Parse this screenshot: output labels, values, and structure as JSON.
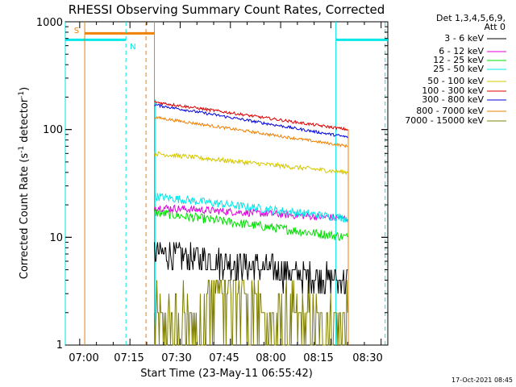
{
  "chart_data": {
    "type": "line",
    "title": "RHESSI Observing Summary Count Rates, Corrected",
    "xlabel": "Start Time (23-May-11 06:55:42)",
    "ylabel": "Corrected Count Rate (s",
    "ylabel_sup1": "-1",
    "ylabel_mid": " detector",
    "ylabel_sup2": "-1",
    "ylabel_end": ")",
    "yscale": "log",
    "ylim": [
      1,
      1000
    ],
    "ytick_labels": [
      "1",
      "10",
      "100",
      "1000"
    ],
    "xlim_minutes": [
      55.7,
      152
    ],
    "xtick_labels": [
      "07:00",
      "07:15",
      "07:30",
      "07:45",
      "08:00",
      "08:15",
      "08:30"
    ],
    "xtick_minutes": [
      60,
      75,
      90,
      105,
      120,
      135,
      150
    ],
    "detectors_line1": "Det 1,3,4,5,6,9,",
    "detectors_line2": "Att 0",
    "series": [
      {
        "name": "3 - 6 keV",
        "color": "#000000",
        "start": 7.5,
        "end": 4.0,
        "noise": 0.22,
        "quant": true
      },
      {
        "name": "6 - 12 keV",
        "color": "#e000e0",
        "start": 19,
        "end": 15,
        "noise": 0.08
      },
      {
        "name": "12 - 25 keV",
        "color": "#00e000",
        "start": 17,
        "end": 10,
        "noise": 0.1
      },
      {
        "name": "25 - 50 keV",
        "color": "#00e8e8",
        "start": 24,
        "end": 15,
        "noise": 0.09
      },
      {
        "name": "50 - 100 keV",
        "color": "#d4c800",
        "start": 60,
        "end": 40,
        "noise": 0.05
      },
      {
        "name": "100 - 300 keV",
        "color": "#e00000",
        "start": 180,
        "end": 100,
        "noise": 0.03
      },
      {
        "name": "300 - 800 keV",
        "color": "#0000e0",
        "start": 170,
        "end": 85,
        "noise": 0.03
      },
      {
        "name": "800 - 7000 keV",
        "color": "#f08000",
        "start": 130,
        "end": 70,
        "noise": 0.03
      },
      {
        "name": "7000 - 15000 keV",
        "color": "#808000",
        "start": 2,
        "end": 2,
        "noise": 0,
        "quant": true
      }
    ],
    "data_interval_minutes": [
      82.3,
      140.0
    ],
    "annotations": {
      "saa_label": "S",
      "night_label": "N",
      "saa_color": "#f08000",
      "night_color": "#00e8e8"
    }
  },
  "timestamp": "17-Oct-2021 08:45"
}
